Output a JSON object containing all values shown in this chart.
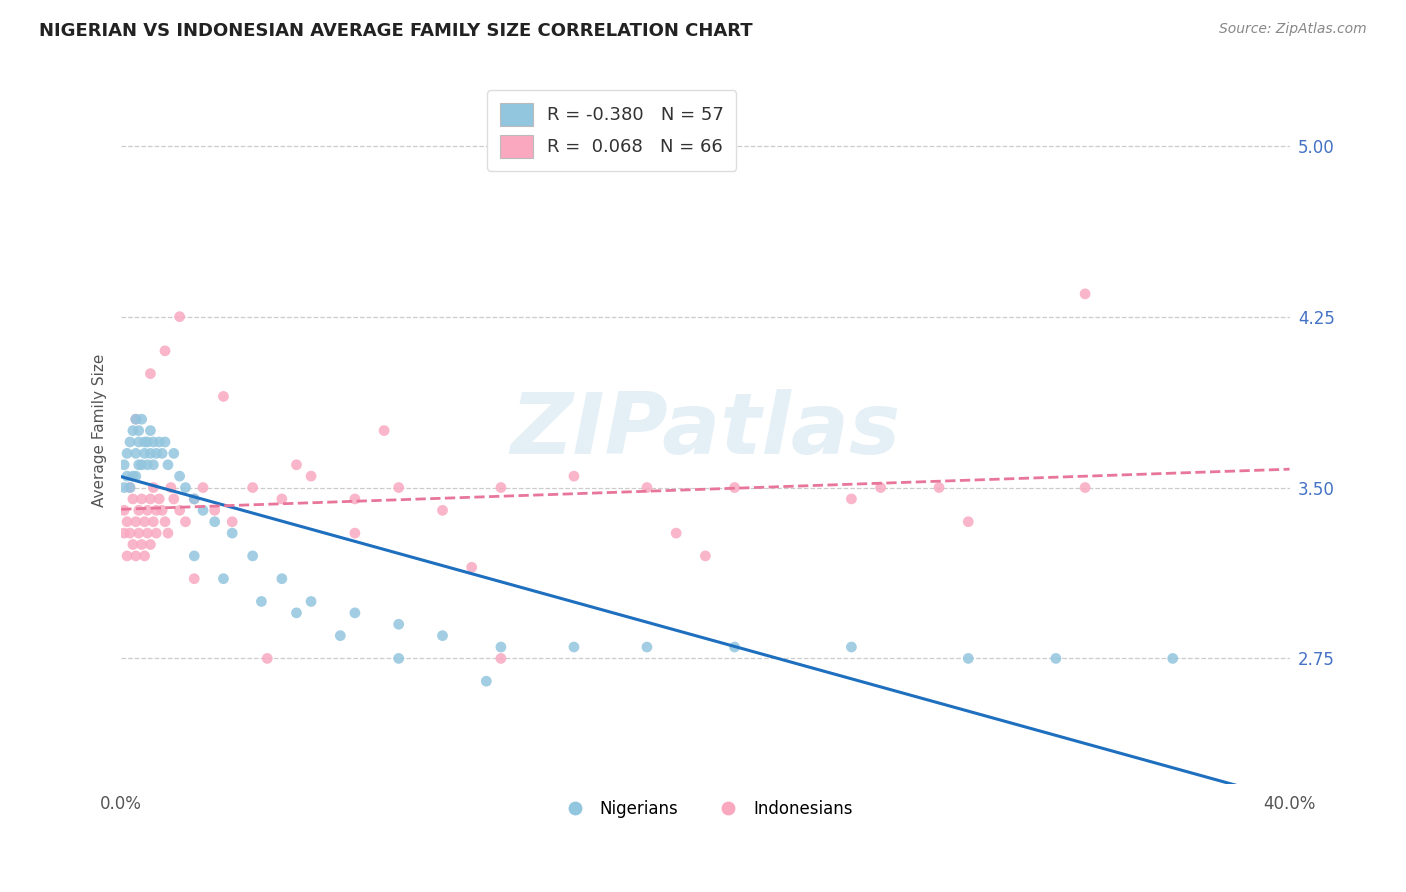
{
  "title": "NIGERIAN VS INDONESIAN AVERAGE FAMILY SIZE CORRELATION CHART",
  "source": "Source: ZipAtlas.com",
  "ylabel": "Average Family Size",
  "yticks": [
    2.75,
    3.5,
    4.25,
    5.0
  ],
  "xlim": [
    0.0,
    0.4
  ],
  "ylim": [
    2.2,
    5.3
  ],
  "nigerian_R": -0.38,
  "nigerian_N": 57,
  "indonesian_R": 0.068,
  "indonesian_N": 66,
  "nigerian_color": "#92c5de",
  "indonesian_color": "#f9a8c0",
  "nigerian_line_color": "#1f6fbf",
  "indonesian_line_color": "#e8769a",
  "watermark": "ZIPatlas",
  "background_color": "#ffffff",
  "grid_color": "#cccccc",
  "nigerian_x": [
    0.001,
    0.001,
    0.002,
    0.002,
    0.003,
    0.003,
    0.004,
    0.004,
    0.005,
    0.005,
    0.005,
    0.006,
    0.006,
    0.006,
    0.007,
    0.007,
    0.008,
    0.008,
    0.009,
    0.009,
    0.01,
    0.01,
    0.011,
    0.011,
    0.012,
    0.013,
    0.014,
    0.015,
    0.016,
    0.018,
    0.02,
    0.022,
    0.025,
    0.028,
    0.032,
    0.038,
    0.045,
    0.055,
    0.065,
    0.08,
    0.095,
    0.11,
    0.13,
    0.155,
    0.18,
    0.21,
    0.25,
    0.29,
    0.32,
    0.36,
    0.025,
    0.035,
    0.048,
    0.06,
    0.075,
    0.095,
    0.125
  ],
  "nigerian_y": [
    3.5,
    3.6,
    3.55,
    3.65,
    3.5,
    3.7,
    3.55,
    3.75,
    3.55,
    3.65,
    3.8,
    3.6,
    3.7,
    3.75,
    3.6,
    3.8,
    3.65,
    3.7,
    3.6,
    3.7,
    3.65,
    3.75,
    3.6,
    3.7,
    3.65,
    3.7,
    3.65,
    3.7,
    3.6,
    3.65,
    3.55,
    3.5,
    3.45,
    3.4,
    3.35,
    3.3,
    3.2,
    3.1,
    3.0,
    2.95,
    2.9,
    2.85,
    2.8,
    2.8,
    2.8,
    2.8,
    2.8,
    2.75,
    2.75,
    2.75,
    3.2,
    3.1,
    3.0,
    2.95,
    2.85,
    2.75,
    2.65
  ],
  "indonesian_x": [
    0.001,
    0.001,
    0.002,
    0.002,
    0.003,
    0.003,
    0.004,
    0.004,
    0.005,
    0.005,
    0.006,
    0.006,
    0.007,
    0.007,
    0.008,
    0.008,
    0.009,
    0.009,
    0.01,
    0.01,
    0.011,
    0.011,
    0.012,
    0.012,
    0.013,
    0.014,
    0.015,
    0.016,
    0.017,
    0.018,
    0.02,
    0.022,
    0.025,
    0.028,
    0.032,
    0.038,
    0.045,
    0.055,
    0.065,
    0.08,
    0.095,
    0.11,
    0.13,
    0.155,
    0.18,
    0.21,
    0.25,
    0.29,
    0.33,
    0.005,
    0.01,
    0.015,
    0.02,
    0.035,
    0.06,
    0.09,
    0.13,
    0.19,
    0.26,
    0.12,
    0.2,
    0.28,
    0.33,
    0.025,
    0.05,
    0.08
  ],
  "indonesian_y": [
    3.4,
    3.3,
    3.35,
    3.2,
    3.5,
    3.3,
    3.45,
    3.25,
    3.35,
    3.2,
    3.4,
    3.3,
    3.45,
    3.25,
    3.35,
    3.2,
    3.4,
    3.3,
    3.45,
    3.25,
    3.35,
    3.5,
    3.4,
    3.3,
    3.45,
    3.4,
    3.35,
    3.3,
    3.5,
    3.45,
    3.4,
    3.35,
    3.45,
    3.5,
    3.4,
    3.35,
    3.5,
    3.45,
    3.55,
    3.45,
    3.5,
    3.4,
    3.5,
    3.55,
    3.5,
    3.5,
    3.45,
    3.35,
    3.5,
    3.8,
    4.0,
    4.1,
    4.25,
    3.9,
    3.6,
    3.75,
    2.75,
    3.3,
    3.5,
    3.15,
    3.2,
    3.5,
    4.35,
    3.1,
    2.75,
    3.3
  ]
}
